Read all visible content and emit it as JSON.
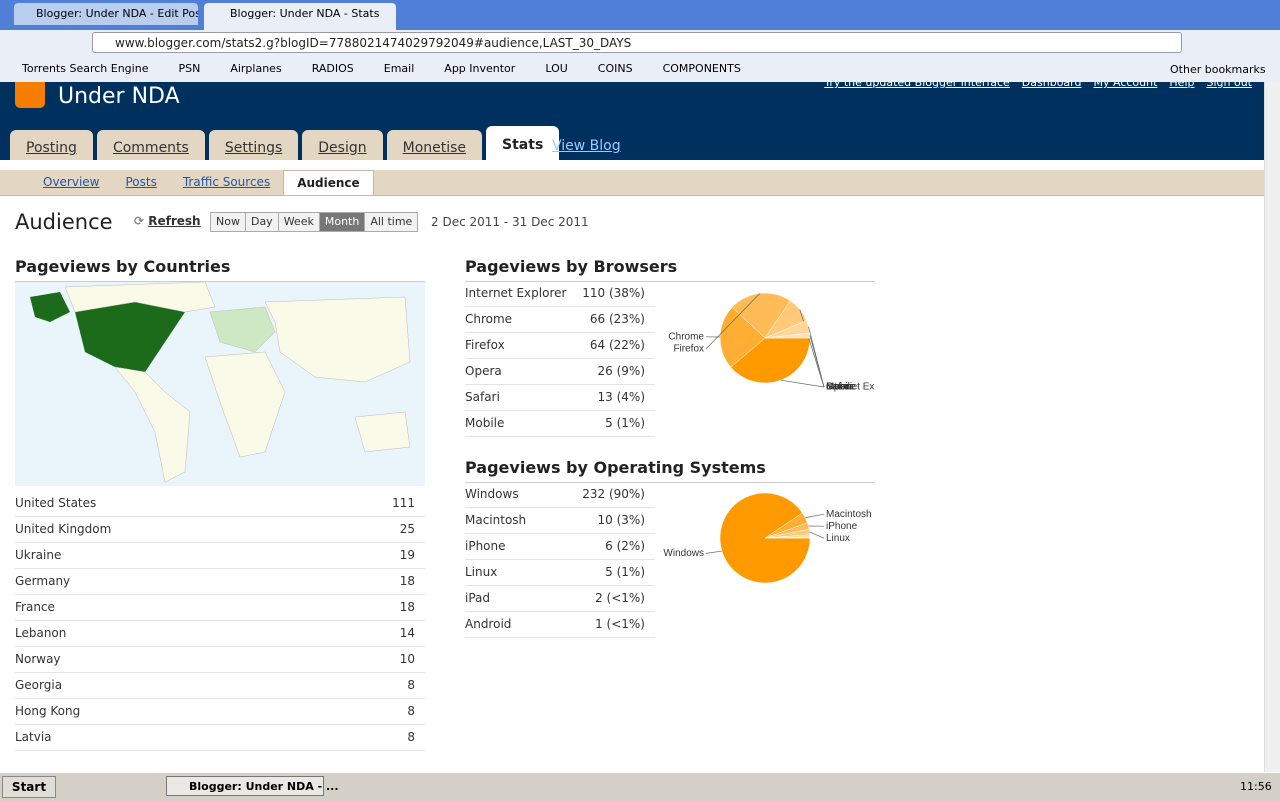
{
  "browser": {
    "tabs": [
      "Blogger: Under NDA - Edit Post",
      "Blogger: Under NDA - Stats"
    ],
    "url": "www.blogger.com/stats2.g?blogID=7788021474029792049#audience,LAST_30_DAYS",
    "bookmarks": [
      "Torrents Search Engine",
      "PSN",
      "Airplanes",
      "RADIOS",
      "Email",
      "App Inventor",
      "LOU",
      "COINS",
      "COMPONENTS"
    ],
    "other_bookmarks": "Other bookmarks"
  },
  "header": {
    "blog": "Under NDA",
    "top_links": [
      "Try the updated Blogger interface",
      "Dashboard",
      "My Account",
      "Help",
      "Sign out"
    ],
    "tabs": [
      "Posting",
      "Comments",
      "Settings",
      "Design",
      "Monetise",
      "Stats"
    ],
    "view_blog": "View Blog",
    "subtabs": [
      "Overview",
      "Posts",
      "Traffic Sources",
      "Audience"
    ]
  },
  "page": {
    "title": "Audience",
    "refresh": "Refresh",
    "ranges": [
      "Now",
      "Day",
      "Week",
      "Month",
      "All time"
    ],
    "active_range_index": 3,
    "date_range": "2 Dec 2011 - 31 Dec 2011"
  },
  "countries": {
    "title": "Pageviews by Countries",
    "rows": [
      {
        "name": "United States",
        "count": 111
      },
      {
        "name": "United Kingdom",
        "count": 25
      },
      {
        "name": "Ukraine",
        "count": 19
      },
      {
        "name": "Germany",
        "count": 18
      },
      {
        "name": "France",
        "count": 18
      },
      {
        "name": "Lebanon",
        "count": 14
      },
      {
        "name": "Norway",
        "count": 10
      },
      {
        "name": "Georgia",
        "count": 8
      },
      {
        "name": "Hong Kong",
        "count": 8
      },
      {
        "name": "Latvia",
        "count": 8
      }
    ]
  },
  "browsers": {
    "title": "Pageviews by Browsers",
    "rows": [
      {
        "name": "Internet Explorer",
        "count": 110,
        "share": "(38%)"
      },
      {
        "name": "Chrome",
        "count": 66,
        "share": "(23%)"
      },
      {
        "name": "Firefox",
        "count": 64,
        "share": "(22%)"
      },
      {
        "name": "Opera",
        "count": 26,
        "share": "(9%)"
      },
      {
        "name": "Safari",
        "count": 13,
        "share": "(4%)"
      },
      {
        "name": "Mobile",
        "count": 5,
        "share": "(1%)"
      }
    ]
  },
  "os": {
    "title": "Pageviews by Operating Systems",
    "rows": [
      {
        "name": "Windows",
        "count": 232,
        "share": "(90%)"
      },
      {
        "name": "Macintosh",
        "count": 10,
        "share": "(3%)"
      },
      {
        "name": "iPhone",
        "count": 6,
        "share": "(2%)"
      },
      {
        "name": "Linux",
        "count": 5,
        "share": "(1%)"
      },
      {
        "name": "iPad",
        "count": 2,
        "share": "(<1%)"
      },
      {
        "name": "Android",
        "count": 1,
        "share": "(<1%)"
      }
    ]
  },
  "taskbar": {
    "start": "Start",
    "window": "Blogger: Under NDA - ...",
    "time": "11:56"
  }
}
